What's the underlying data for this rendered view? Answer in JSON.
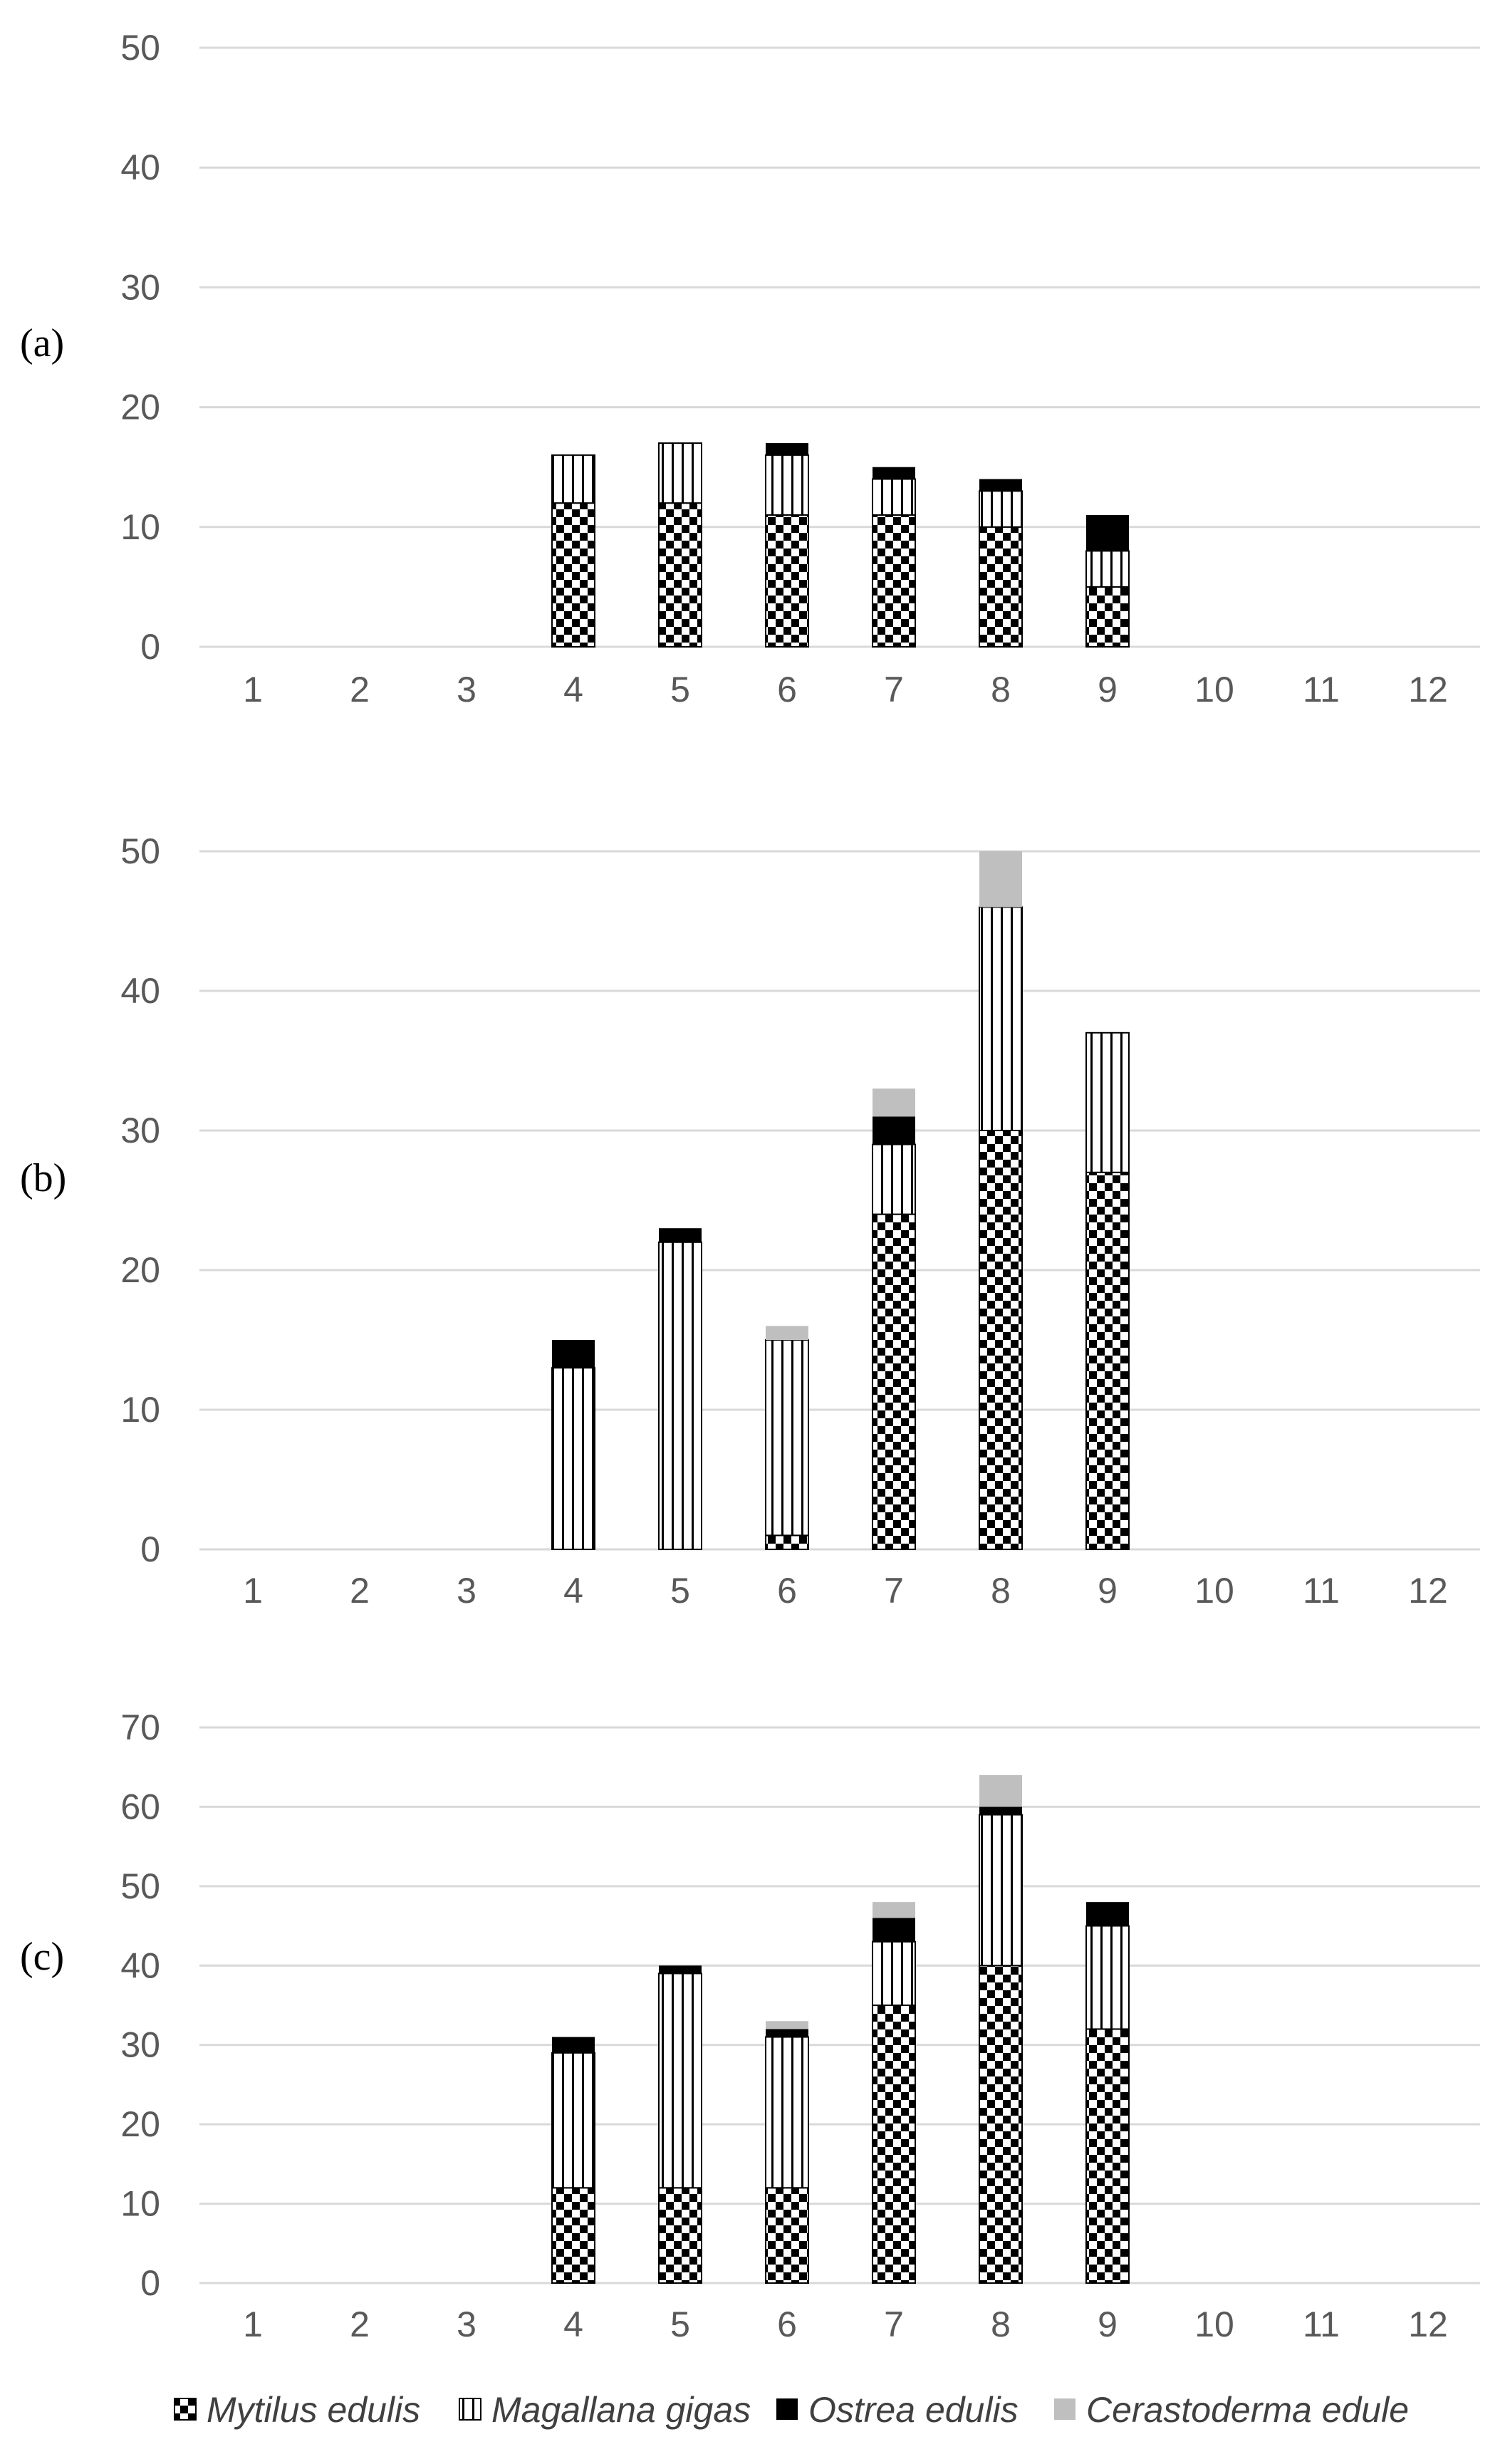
{
  "chart_data": [
    {
      "type": "bar",
      "stacked": true,
      "panel_label": "(a)",
      "categories": [
        "1",
        "2",
        "3",
        "4",
        "5",
        "6",
        "7",
        "8",
        "9",
        "10",
        "11",
        "12"
      ],
      "ylim": [
        0,
        50
      ],
      "yticks": [
        0,
        10,
        20,
        30,
        40,
        50
      ],
      "grid": true,
      "series": [
        {
          "name": "Mytilus edulis",
          "values": [
            0,
            0,
            0,
            12,
            12,
            11,
            11,
            10,
            5,
            0,
            0,
            0
          ]
        },
        {
          "name": "Magallana gigas",
          "values": [
            0,
            0,
            0,
            4,
            5,
            5,
            3,
            3,
            3,
            0,
            0,
            0
          ]
        },
        {
          "name": "Ostrea edulis",
          "values": [
            0,
            0,
            0,
            0,
            0,
            1,
            1,
            1,
            3,
            0,
            0,
            0
          ]
        },
        {
          "name": "Cerastoderma edule",
          "values": [
            0,
            0,
            0,
            0,
            0,
            0,
            0,
            0,
            0,
            0,
            0,
            0
          ]
        }
      ]
    },
    {
      "type": "bar",
      "stacked": true,
      "panel_label": "(b)",
      "categories": [
        "1",
        "2",
        "3",
        "4",
        "5",
        "6",
        "7",
        "8",
        "9",
        "10",
        "11",
        "12"
      ],
      "ylim": [
        0,
        50
      ],
      "yticks": [
        0,
        10,
        20,
        30,
        40,
        50
      ],
      "grid": true,
      "series": [
        {
          "name": "Mytilus edulis",
          "values": [
            0,
            0,
            0,
            0,
            0,
            1,
            24,
            30,
            27,
            0,
            0,
            0
          ]
        },
        {
          "name": "Magallana gigas",
          "values": [
            0,
            0,
            0,
            13,
            22,
            14,
            5,
            16,
            10,
            0,
            0,
            0
          ]
        },
        {
          "name": "Ostrea edulis",
          "values": [
            0,
            0,
            0,
            2,
            1,
            0,
            2,
            0,
            0,
            0,
            0,
            0
          ]
        },
        {
          "name": "Cerastoderma edule",
          "values": [
            0,
            0,
            0,
            0,
            0,
            1,
            2,
            4,
            0,
            0,
            0,
            0
          ]
        }
      ]
    },
    {
      "type": "bar",
      "stacked": true,
      "panel_label": "(c)",
      "categories": [
        "1",
        "2",
        "3",
        "4",
        "5",
        "6",
        "7",
        "8",
        "9",
        "10",
        "11",
        "12"
      ],
      "ylim": [
        0,
        70
      ],
      "yticks": [
        0,
        10,
        20,
        30,
        40,
        50,
        60,
        70
      ],
      "grid": true,
      "series": [
        {
          "name": "Mytilus edulis",
          "values": [
            0,
            0,
            0,
            12,
            12,
            12,
            35,
            40,
            32,
            0,
            0,
            0
          ]
        },
        {
          "name": "Magallana gigas",
          "values": [
            0,
            0,
            0,
            17,
            27,
            19,
            8,
            19,
            13,
            0,
            0,
            0
          ]
        },
        {
          "name": "Ostrea edulis",
          "values": [
            0,
            0,
            0,
            2,
            1,
            1,
            3,
            1,
            3,
            0,
            0,
            0
          ]
        },
        {
          "name": "Cerastoderma edule",
          "values": [
            0,
            0,
            0,
            0,
            0,
            1,
            2,
            4,
            0,
            0,
            0,
            0
          ]
        }
      ]
    }
  ],
  "legend": {
    "position": "bottom",
    "items": [
      {
        "label": "Mytilus edulis",
        "pattern": "checker"
      },
      {
        "label": "Magallana gigas",
        "pattern": "vertical-stripes"
      },
      {
        "label": "Ostrea edulis",
        "pattern": "solid-black"
      },
      {
        "label": "Cerastoderma edule",
        "pattern": "solid-gray"
      }
    ]
  },
  "colors": {
    "grid": "#d9d9d9",
    "tick_text": "#595959",
    "ostrea": "#000000",
    "cerastoderma": "#bfbfbf",
    "background": "#ffffff"
  }
}
